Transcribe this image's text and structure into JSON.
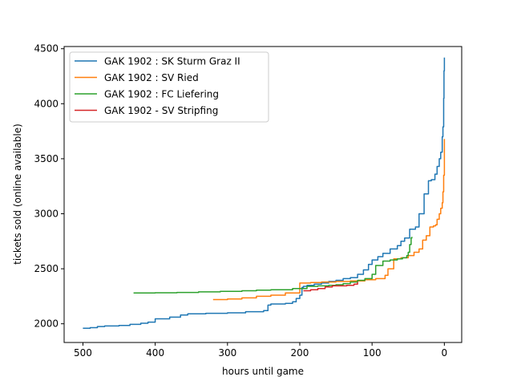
{
  "chart_data": {
    "type": "line",
    "title": "",
    "xlabel": "hours until game",
    "ylabel": "tickets sold (online available)",
    "xlim": [
      526,
      -24
    ],
    "ylim": [
      1830,
      4520
    ],
    "x_ticks": [
      500,
      400,
      300,
      200,
      100,
      0
    ],
    "y_ticks": [
      2000,
      2500,
      3000,
      3500,
      4000,
      4500
    ],
    "grid": false,
    "legend_position": "upper-left",
    "series": [
      {
        "name": "GAK 1902 : SK Sturm Graz II",
        "color": "#1f77b4",
        "x": [
          500,
          490,
          480,
          470,
          450,
          435,
          420,
          410,
          400,
          380,
          365,
          355,
          330,
          300,
          275,
          250,
          244,
          240,
          220,
          210,
          205,
          200,
          197,
          195,
          190,
          180,
          170,
          160,
          150,
          140,
          130,
          120,
          112,
          105,
          100,
          92,
          85,
          75,
          65,
          60,
          55,
          48,
          40,
          35,
          28,
          22,
          18,
          13,
          10,
          7,
          5,
          3,
          2,
          1,
          0.5,
          0
        ],
        "y": [
          1960,
          1965,
          1975,
          1980,
          1985,
          1995,
          2005,
          2015,
          2045,
          2060,
          2080,
          2090,
          2095,
          2100,
          2110,
          2120,
          2170,
          2180,
          2185,
          2200,
          2230,
          2260,
          2330,
          2340,
          2350,
          2360,
          2370,
          2385,
          2395,
          2410,
          2420,
          2450,
          2490,
          2540,
          2580,
          2610,
          2640,
          2680,
          2710,
          2750,
          2780,
          2860,
          2880,
          3000,
          3180,
          3300,
          3310,
          3360,
          3430,
          3500,
          3560,
          3700,
          3790,
          4050,
          4300,
          4420
        ]
      },
      {
        "name": "GAK 1902 : SV Ried",
        "color": "#ff7f0e",
        "x": [
          320,
          300,
          280,
          260,
          240,
          220,
          200,
          185,
          170,
          150,
          130,
          110,
          95,
          82,
          78,
          70,
          60,
          50,
          42,
          35,
          30,
          25,
          20,
          15,
          12,
          10,
          7,
          5,
          3,
          2,
          1,
          0
        ],
        "y": [
          2220,
          2225,
          2235,
          2250,
          2260,
          2280,
          2370,
          2375,
          2380,
          2385,
          2390,
          2400,
          2410,
          2440,
          2500,
          2590,
          2600,
          2620,
          2650,
          2680,
          2760,
          2800,
          2880,
          2890,
          2900,
          2950,
          3000,
          3050,
          3100,
          3200,
          3350,
          3680
        ]
      },
      {
        "name": "GAK 1902 : FC Liefering",
        "color": "#2ca02c",
        "x": [
          430,
          400,
          370,
          340,
          310,
          280,
          260,
          240,
          210,
          190,
          175,
          160,
          150,
          140,
          130,
          120,
          110,
          100,
          95,
          85,
          75,
          65,
          58,
          52,
          50,
          48,
          46,
          45
        ],
        "y": [
          2280,
          2282,
          2285,
          2290,
          2295,
          2300,
          2305,
          2310,
          2320,
          2340,
          2345,
          2350,
          2355,
          2365,
          2380,
          2395,
          2410,
          2450,
          2530,
          2570,
          2580,
          2590,
          2600,
          2620,
          2650,
          2720,
          2780,
          2790
        ]
      },
      {
        "name": "GAK 1902 - SV Stripfing",
        "color": "#d62728",
        "x": [
          195,
          185,
          175,
          165,
          155,
          145,
          135,
          125,
          120
        ],
        "y": [
          2300,
          2310,
          2320,
          2335,
          2345,
          2345,
          2350,
          2360,
          2380
        ]
      }
    ]
  }
}
